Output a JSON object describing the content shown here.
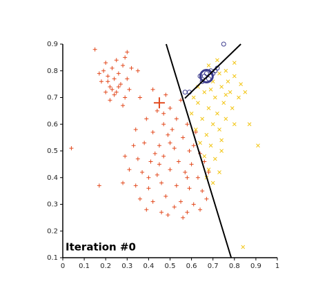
{
  "chart_data": {
    "type": "scatter",
    "annotation": "Iteration #0",
    "xlim": [
      0,
      1
    ],
    "ylim": [
      0.1,
      0.9
    ],
    "xticks": [
      0,
      0.1,
      0.2,
      0.3,
      0.4,
      0.5,
      0.6,
      0.7,
      0.8,
      0.9,
      1
    ],
    "yticks": [
      0.1,
      0.2,
      0.3,
      0.4,
      0.5,
      0.6,
      0.7,
      0.8,
      0.9
    ],
    "grid": false,
    "series": [
      {
        "color": "#e2481c",
        "marker": "+",
        "points": [
          [
            0.18,
            0.76
          ],
          [
            0.19,
            0.8
          ],
          [
            0.2,
            0.83
          ],
          [
            0.21,
            0.78
          ],
          [
            0.22,
            0.74
          ],
          [
            0.23,
            0.81
          ],
          [
            0.24,
            0.77
          ],
          [
            0.25,
            0.72
          ],
          [
            0.26,
            0.79
          ],
          [
            0.27,
            0.75
          ],
          [
            0.28,
            0.82
          ],
          [
            0.29,
            0.7
          ],
          [
            0.3,
            0.77
          ],
          [
            0.2,
            0.72
          ],
          [
            0.22,
            0.69
          ],
          [
            0.25,
            0.84
          ],
          [
            0.17,
            0.79
          ],
          [
            0.31,
            0.73
          ],
          [
            0.28,
            0.67
          ],
          [
            0.24,
            0.71
          ],
          [
            0.26,
            0.74
          ],
          [
            0.21,
            0.76
          ],
          [
            0.32,
            0.81
          ],
          [
            0.29,
            0.85
          ],
          [
            0.23,
            0.73
          ],
          [
            0.15,
            0.88
          ],
          [
            0.04,
            0.51
          ],
          [
            0.17,
            0.37
          ],
          [
            0.3,
            0.87
          ],
          [
            0.35,
            0.8
          ],
          [
            0.36,
            0.7
          ],
          [
            0.42,
            0.73
          ],
          [
            0.48,
            0.71
          ],
          [
            0.5,
            0.66
          ],
          [
            0.55,
            0.69
          ],
          [
            0.44,
            0.65
          ],
          [
            0.39,
            0.62
          ],
          [
            0.47,
            0.6
          ],
          [
            0.53,
            0.62
          ],
          [
            0.58,
            0.6
          ],
          [
            0.34,
            0.58
          ],
          [
            0.42,
            0.57
          ],
          [
            0.49,
            0.56
          ],
          [
            0.56,
            0.55
          ],
          [
            0.62,
            0.57
          ],
          [
            0.38,
            0.53
          ],
          [
            0.45,
            0.52
          ],
          [
            0.52,
            0.51
          ],
          [
            0.59,
            0.5
          ],
          [
            0.64,
            0.49
          ],
          [
            0.29,
            0.48
          ],
          [
            0.35,
            0.47
          ],
          [
            0.41,
            0.46
          ],
          [
            0.47,
            0.48
          ],
          [
            0.54,
            0.46
          ],
          [
            0.6,
            0.45
          ],
          [
            0.66,
            0.46
          ],
          [
            0.31,
            0.43
          ],
          [
            0.37,
            0.42
          ],
          [
            0.44,
            0.41
          ],
          [
            0.5,
            0.43
          ],
          [
            0.57,
            0.42
          ],
          [
            0.63,
            0.4
          ],
          [
            0.68,
            0.42
          ],
          [
            0.28,
            0.38
          ],
          [
            0.34,
            0.37
          ],
          [
            0.4,
            0.36
          ],
          [
            0.46,
            0.38
          ],
          [
            0.53,
            0.37
          ],
          [
            0.59,
            0.36
          ],
          [
            0.65,
            0.35
          ],
          [
            0.36,
            0.32
          ],
          [
            0.42,
            0.31
          ],
          [
            0.48,
            0.33
          ],
          [
            0.55,
            0.31
          ],
          [
            0.61,
            0.3
          ],
          [
            0.67,
            0.32
          ],
          [
            0.39,
            0.28
          ],
          [
            0.46,
            0.27
          ],
          [
            0.52,
            0.29
          ],
          [
            0.58,
            0.27
          ],
          [
            0.64,
            0.28
          ],
          [
            0.49,
            0.26
          ],
          [
            0.56,
            0.25
          ],
          [
            0.43,
            0.49
          ],
          [
            0.51,
            0.58
          ],
          [
            0.45,
            0.45
          ],
          [
            0.33,
            0.52
          ],
          [
            0.61,
            0.52
          ],
          [
            0.47,
            0.64
          ],
          [
            0.5,
            0.53
          ],
          [
            0.58,
            0.4
          ],
          [
            0.4,
            0.4
          ]
        ]
      },
      {
        "color": "#f2c514",
        "marker": "x",
        "points": [
          [
            0.68,
            0.82
          ],
          [
            0.72,
            0.84
          ],
          [
            0.76,
            0.8
          ],
          [
            0.8,
            0.78
          ],
          [
            0.83,
            0.75
          ],
          [
            0.7,
            0.76
          ],
          [
            0.74,
            0.74
          ],
          [
            0.78,
            0.72
          ],
          [
            0.82,
            0.7
          ],
          [
            0.66,
            0.72
          ],
          [
            0.71,
            0.7
          ],
          [
            0.75,
            0.68
          ],
          [
            0.79,
            0.66
          ],
          [
            0.63,
            0.68
          ],
          [
            0.68,
            0.66
          ],
          [
            0.72,
            0.64
          ],
          [
            0.6,
            0.64
          ],
          [
            0.65,
            0.62
          ],
          [
            0.7,
            0.6
          ],
          [
            0.62,
            0.58
          ],
          [
            0.67,
            0.56
          ],
          [
            0.73,
            0.58
          ],
          [
            0.64,
            0.53
          ],
          [
            0.69,
            0.52
          ],
          [
            0.74,
            0.54
          ],
          [
            0.66,
            0.48
          ],
          [
            0.71,
            0.47
          ],
          [
            0.68,
            0.43
          ],
          [
            0.73,
            0.42
          ],
          [
            0.7,
            0.38
          ],
          [
            0.67,
            0.4
          ],
          [
            0.76,
            0.62
          ],
          [
            0.8,
            0.6
          ],
          [
            0.85,
            0.72
          ],
          [
            0.77,
            0.76
          ],
          [
            0.73,
            0.79
          ],
          [
            0.69,
            0.73
          ],
          [
            0.61,
            0.7
          ],
          [
            0.74,
            0.5
          ],
          [
            0.87,
            0.6
          ],
          [
            0.91,
            0.52
          ],
          [
            0.84,
            0.14
          ],
          [
            0.8,
            0.83
          ],
          [
            0.76,
            0.71
          ],
          [
            0.63,
            0.74
          ]
        ]
      },
      {
        "color": "#3c3c8e",
        "marker": "o",
        "points": [
          [
            0.57,
            0.72
          ],
          [
            0.59,
            0.72
          ],
          [
            0.75,
            0.9
          ],
          [
            0.71,
            0.8
          ],
          [
            0.72,
            0.81
          ],
          [
            0.65,
            0.76
          ],
          [
            0.67,
            0.79
          ],
          [
            0.68,
            0.77
          ],
          [
            0.66,
            0.78
          ],
          [
            0.69,
            0.8
          ],
          [
            0.7,
            0.79
          ],
          [
            0.64,
            0.78
          ]
        ]
      }
    ],
    "centroids": [
      {
        "color": "#e2481c",
        "marker": "+",
        "x": 0.45,
        "y": 0.68
      },
      {
        "color": "#3c3c8e",
        "marker": "o",
        "x": 0.67,
        "y": 0.78
      }
    ],
    "lines": [
      {
        "color": "#000000",
        "x": [
          0.482,
          0.785
        ],
        "y": [
          0.9,
          0.1
        ]
      },
      {
        "color": "#000000",
        "x": [
          0.569,
          0.83
        ],
        "y": [
          0.697,
          0.9
        ]
      }
    ]
  }
}
